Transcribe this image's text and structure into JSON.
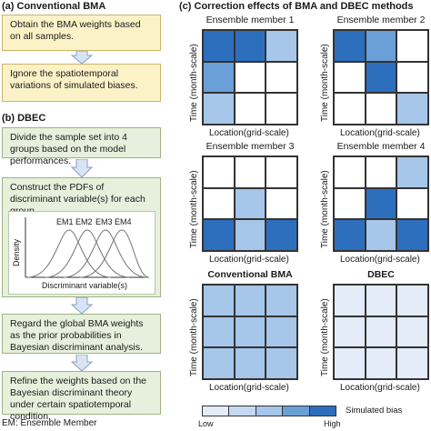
{
  "panel_a": {
    "title": "(a) Conventional BMA",
    "box1": "Obtain the BMA weights based on all samples.",
    "box2": "Ignore the spatiotemporal variations of simulated biases."
  },
  "panel_b": {
    "title": "(b) DBEC",
    "box1": "Divide the sample set into 4 groups based on the model performances.",
    "box2_line": "Construct the PDFs of discriminant variable(s) for each group",
    "pdf": {
      "ylabel": "Density",
      "xlabel": "Discriminant variable(s)",
      "curves": [
        "EM1",
        "EM2",
        "EM3",
        "EM4"
      ]
    },
    "box3": "Regard the global BMA weights as the prior probabilities in Bayesian discriminant analysis.",
    "box4": "Refine the weights based on the Bayesian discriminant theory under certain spatiotemporal condition."
  },
  "footnote": "EM: Ensemble Member",
  "panel_c": {
    "title": "(c) Correction effects of BMA and DBEC methods",
    "ylabel": "Time (month-scale)",
    "xlabel": "Location(grid-scale)",
    "colors": [
      "#ffffff",
      "#e3ecf8",
      "#c5d9f0",
      "#a6c6ea",
      "#6a9fd8",
      "#2e6fbd"
    ],
    "grids": [
      {
        "title": "Ensemble member 1",
        "bold": false,
        "cells": [
          [
            5,
            5,
            3
          ],
          [
            4,
            0,
            0
          ],
          [
            3,
            0,
            0
          ]
        ]
      },
      {
        "title": "Ensemble member 2",
        "bold": false,
        "cells": [
          [
            5,
            4,
            0
          ],
          [
            0,
            5,
            0
          ],
          [
            0,
            0,
            3
          ]
        ]
      },
      {
        "title": "Ensemble member 3",
        "bold": false,
        "cells": [
          [
            0,
            0,
            0
          ],
          [
            0,
            3,
            0
          ],
          [
            5,
            3,
            5
          ]
        ]
      },
      {
        "title": "Ensemble member 4",
        "bold": false,
        "cells": [
          [
            0,
            0,
            3
          ],
          [
            0,
            5,
            0
          ],
          [
            5,
            3,
            5
          ]
        ]
      },
      {
        "title": "Conventional BMA",
        "bold": true,
        "cells": [
          [
            3,
            3,
            3
          ],
          [
            3,
            3,
            3
          ],
          [
            3,
            3,
            3
          ]
        ]
      },
      {
        "title": "DBEC",
        "bold": true,
        "cells": [
          [
            1,
            1,
            1
          ],
          [
            1,
            1,
            1
          ],
          [
            1,
            1,
            1
          ]
        ]
      }
    ],
    "legend": {
      "label": "Simulated bias",
      "low": "Low",
      "high": "High"
    }
  }
}
